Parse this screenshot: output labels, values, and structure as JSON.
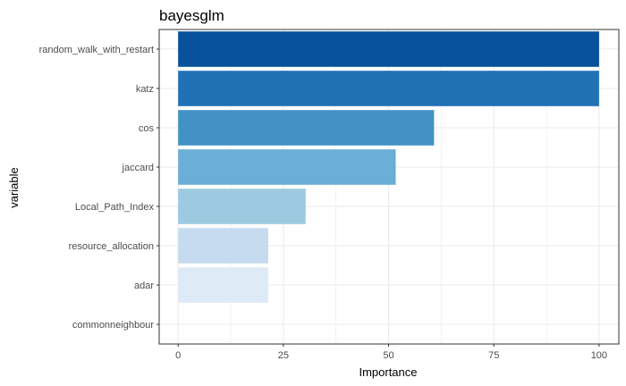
{
  "chart_data": {
    "type": "bar",
    "orientation": "horizontal",
    "title": "bayesglm",
    "xlabel": "Importance",
    "ylabel": "variable",
    "categories": [
      "random_walk_with_restart",
      "katz",
      "cos",
      "jaccard",
      "Local_Path_Index",
      "resource_allocation",
      "adar",
      "commonneighbour"
    ],
    "values": [
      100,
      100,
      60.8,
      51.7,
      30.3,
      21.4,
      21.4,
      0
    ],
    "bar_colors": [
      "#08519c",
      "#2171b5",
      "#4292c6",
      "#6baed6",
      "#9ecae1",
      "#c6dbef",
      "#deebf7",
      "#f7fbff"
    ],
    "xlim": [
      -4.5,
      104.7
    ],
    "xticks": [
      0,
      25,
      50,
      75,
      100
    ],
    "grid": true,
    "legend": "none",
    "panel_border_color": "#333333",
    "grid_color": "#ebebeb"
  }
}
